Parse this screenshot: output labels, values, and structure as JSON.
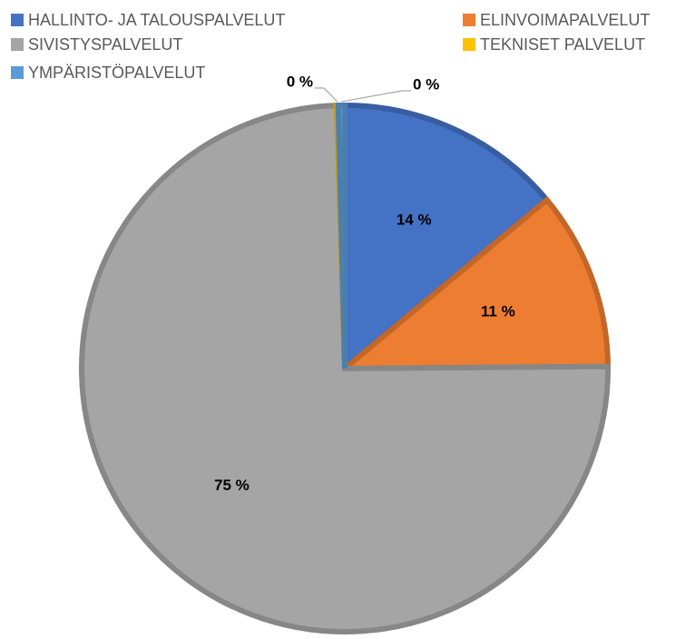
{
  "chart_data": {
    "type": "pie",
    "categories": [
      "HALLINTO- JA TALOUSPALVELUT",
      "ELINVOIMAPALVELUT",
      "SIVISTYSPALVELUT",
      "TEKNISET PALVELUT",
      "YMPÄRISTÖPALVELUT"
    ],
    "values": [
      14,
      11,
      75,
      0.1,
      0.4
    ],
    "value_labels": [
      "14 %",
      "11 %",
      "75 %",
      "0 %",
      "0 %"
    ],
    "colors": [
      "#4472c4",
      "#ed7d31",
      "#a5a5a5",
      "#ffc000",
      "#5b9bd5"
    ],
    "legend": "top"
  }
}
